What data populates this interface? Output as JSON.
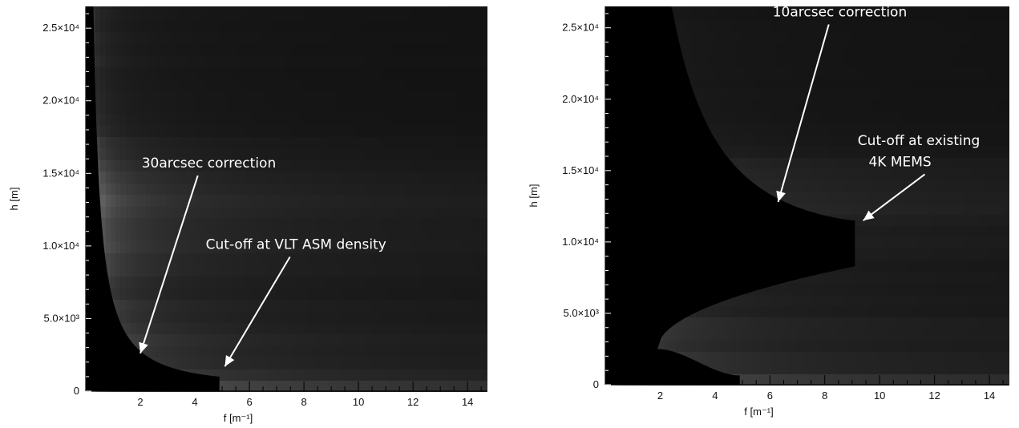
{
  "chart_data": [
    {
      "type": "heatmap",
      "xlabel": "f [m⁻¹]",
      "ylabel": "h [m]",
      "xlim": [
        0,
        14.7
      ],
      "ylim": [
        0,
        26500
      ],
      "x_ticks": [
        2,
        4,
        6,
        8,
        10,
        12,
        14
      ],
      "x_tick_labels": [
        "2",
        "4",
        "6",
        "8",
        "10",
        "12",
        "14"
      ],
      "y_ticks": [
        0,
        5000,
        10000,
        15000,
        20000,
        25000
      ],
      "y_tick_labels": [
        "0",
        "5.0×10³",
        "1.0×10⁴",
        "1.5×10⁴",
        "2.0×10⁴",
        "2.5×10⁴"
      ],
      "colorscale": "grayscale",
      "correction_region": {
        "kind": "single",
        "curve_k": 2.6,
        "cutoff_f": 4.9
      },
      "annotations": [
        {
          "text": "30arcsec correction",
          "x": 2.05,
          "y": 15400,
          "arrow_to": [
            2.0,
            2600
          ]
        },
        {
          "text": "Cut-off at VLT ASM density",
          "x": 4.4,
          "y": 9800,
          "arrow_to": [
            5.1,
            1700
          ]
        }
      ]
    },
    {
      "type": "heatmap",
      "xlabel": "f [m⁻¹]",
      "ylabel": "h [m]",
      "xlim": [
        0,
        14.7
      ],
      "ylim": [
        0,
        26500
      ],
      "x_ticks": [
        2,
        4,
        6,
        8,
        10,
        12,
        14
      ],
      "x_tick_labels": [
        "2",
        "4",
        "6",
        "8",
        "10",
        "12",
        "14"
      ],
      "y_ticks": [
        0,
        5000,
        10000,
        15000,
        20000,
        25000
      ],
      "y_tick_labels": [
        "0",
        "5.0×10³",
        "1.0×10⁴",
        "1.5×10⁴",
        "2.0×10⁴",
        "2.5×10⁴"
      ],
      "colorscale": "grayscale",
      "correction_region": {
        "kind": "dual",
        "upper_k": 13.2,
        "lower_cap": 8300,
        "lower_min_f": 1.9,
        "lower_min_h": 2500,
        "cutoff_f": 9.1,
        "cutoff_h": 11500,
        "base_cutoff_f": 4.9
      },
      "annotations": [
        {
          "text": "10arcsec correction",
          "x": 6.1,
          "y": 25800,
          "arrow_to": [
            6.3,
            12800
          ]
        },
        {
          "text": "Cut-off at existing",
          "x": 9.2,
          "y": 16800,
          "arrow_to": null
        },
        {
          "text": "4K MEMS",
          "x": 9.6,
          "y": 15300,
          "arrow_to": [
            9.4,
            11500
          ]
        }
      ]
    }
  ]
}
